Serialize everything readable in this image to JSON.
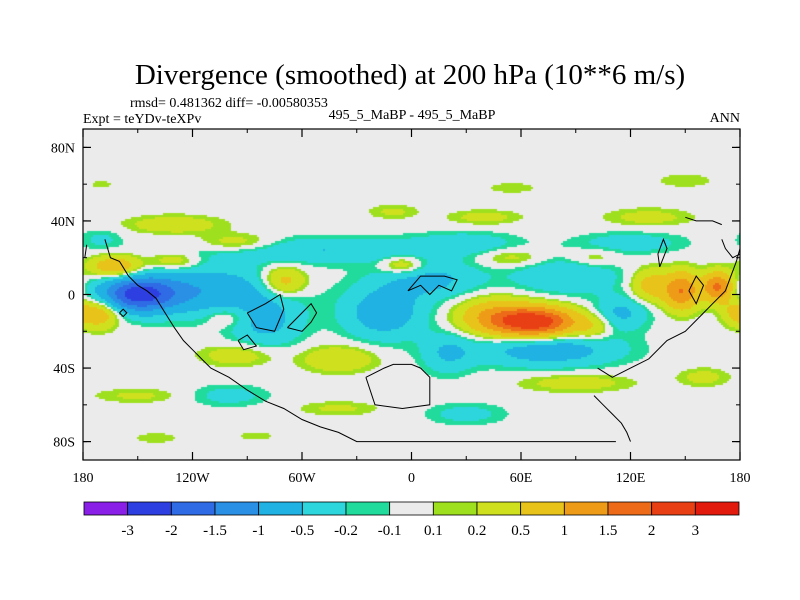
{
  "chart_data": {
    "type": "heatmap",
    "title": "Divergence (smoothed) at 200 hPa (10**6 m/s)",
    "stats_line": "rmsd= 0.481362 diff= -0.00580353",
    "left_label": "Expt = teYDv-teXPv",
    "center_label": "495_5_MaBP - 495_5_MaBP",
    "right_label": "ANN",
    "xlim": [
      -180,
      180
    ],
    "ylim": [
      -90,
      90
    ],
    "x_ticks": [
      {
        "value": -180,
        "label": "180"
      },
      {
        "value": -120,
        "label": "120W"
      },
      {
        "value": -60,
        "label": "60W"
      },
      {
        "value": 0,
        "label": "0"
      },
      {
        "value": 60,
        "label": "60E"
      },
      {
        "value": 120,
        "label": "120E"
      },
      {
        "value": 180,
        "label": "180"
      }
    ],
    "y_ticks": [
      {
        "value": 80,
        "label": "80N"
      },
      {
        "value": 40,
        "label": "40N"
      },
      {
        "value": 0,
        "label": "0"
      },
      {
        "value": -40,
        "label": "40S"
      },
      {
        "value": -80,
        "label": "80S"
      }
    ],
    "levels": [
      "-3",
      "-2",
      "-1.5",
      "-1",
      "-0.5",
      "-0.2",
      "-0.1",
      "0.1",
      "0.2",
      "0.5",
      "1",
      "1.5",
      "2",
      "3"
    ],
    "colors": [
      "#8a20e8",
      "#2d3fe0",
      "#2f6be4",
      "#2a90e6",
      "#1fb2e2",
      "#2dd6dc",
      "#21db9c",
      "#ebebeb",
      "#9fe01e",
      "#cfe11e",
      "#e8c41a",
      "#ee9c18",
      "#ec6a18",
      "#e83f14",
      "#e21a0e"
    ],
    "blobs": [
      {
        "lon": -150,
        "lat": 0,
        "rlon": 20,
        "rlat": 9,
        "v": -2.0
      },
      {
        "lon": -115,
        "lat": 2,
        "rlon": 40,
        "rlat": 13,
        "v": -0.9
      },
      {
        "lon": -80,
        "lat": -15,
        "rlon": 20,
        "rlat": 14,
        "v": -0.6
      },
      {
        "lon": -15,
        "lat": -10,
        "rlon": 22,
        "rlat": 14,
        "v": -0.8
      },
      {
        "lon": 10,
        "lat": 8,
        "rlon": 28,
        "rlat": 10,
        "v": -0.6
      },
      {
        "lon": 20,
        "lat": -32,
        "rlon": 14,
        "rlat": 11,
        "v": -0.5
      },
      {
        "lon": 85,
        "lat": 10,
        "rlon": 30,
        "rlat": 10,
        "v": -0.5
      },
      {
        "lon": 75,
        "lat": -30,
        "rlon": 38,
        "rlat": 9,
        "v": -0.8
      },
      {
        "lon": 115,
        "lat": -10,
        "rlon": 15,
        "rlat": 9,
        "v": -0.6
      },
      {
        "lon": -50,
        "lat": 24,
        "rlon": 65,
        "rlat": 7,
        "v": -0.5
      },
      {
        "lon": 30,
        "lat": 28,
        "rlon": 28,
        "rlat": 6,
        "v": -0.35
      },
      {
        "lon": 120,
        "lat": 28,
        "rlon": 30,
        "rlat": 6,
        "v": -0.35
      },
      {
        "lon": -100,
        "lat": -55,
        "rlon": 22,
        "rlat": 6,
        "v": -0.3
      },
      {
        "lon": 30,
        "lat": -65,
        "rlon": 22,
        "rlat": 6,
        "v": -0.3
      },
      {
        "lon": -170,
        "lat": 30,
        "rlon": 12,
        "rlat": 6,
        "v": -0.25
      },
      {
        "lon": 68,
        "lat": -15,
        "rlon": 22,
        "rlat": 8,
        "v": 2.4
      },
      {
        "lon": 45,
        "lat": -12,
        "rlon": 20,
        "rlat": 10,
        "v": 0.9
      },
      {
        "lon": 100,
        "lat": -18,
        "rlon": 10,
        "rlat": 7,
        "v": 0.4
      },
      {
        "lon": 148,
        "lat": 2,
        "rlon": 10,
        "rlat": 10,
        "v": 1.5
      },
      {
        "lon": 168,
        "lat": 4,
        "rlon": 8,
        "rlat": 8,
        "v": 1.6
      },
      {
        "lon": 130,
        "lat": 5,
        "rlon": 10,
        "rlat": 9,
        "v": 0.7
      },
      {
        "lon": -170,
        "lat": -10,
        "rlon": 10,
        "rlat": 8,
        "v": 0.9
      },
      {
        "lon": 178,
        "lat": -10,
        "rlon": 8,
        "rlat": 7,
        "v": 0.6
      },
      {
        "lon": -162,
        "lat": 15,
        "rlon": 14,
        "rlat": 6,
        "v": 1.0
      },
      {
        "lon": -70,
        "lat": 7,
        "rlon": 12,
        "rlat": 8,
        "v": 0.8
      },
      {
        "lon": -100,
        "lat": -12,
        "rlon": 12,
        "rlat": 6,
        "v": 0.4
      },
      {
        "lon": -130,
        "lat": 18,
        "rlon": 14,
        "rlat": 5,
        "v": 0.5
      },
      {
        "lon": -95,
        "lat": 28,
        "rlon": 22,
        "rlat": 5,
        "v": 0.45
      },
      {
        "lon": -5,
        "lat": 16,
        "rlon": 12,
        "rlat": 5,
        "v": 0.6
      },
      {
        "lon": -40,
        "lat": -35,
        "rlon": 20,
        "rlat": 7,
        "v": 0.5
      },
      {
        "lon": -95,
        "lat": -33,
        "rlon": 20,
        "rlat": 6,
        "v": 0.4
      },
      {
        "lon": 55,
        "lat": 20,
        "rlon": 18,
        "rlat": 5,
        "v": 0.35
      },
      {
        "lon": 100,
        "lat": 20,
        "rlon": 14,
        "rlat": 5,
        "v": 0.3
      },
      {
        "lon": -130,
        "lat": 38,
        "rlon": 26,
        "rlat": 5,
        "v": 0.4
      },
      {
        "lon": 40,
        "lat": 42,
        "rlon": 20,
        "rlat": 4,
        "v": 0.3
      },
      {
        "lon": 130,
        "lat": 42,
        "rlon": 24,
        "rlat": 5,
        "v": 0.3
      },
      {
        "lon": -10,
        "lat": 45,
        "rlon": 14,
        "rlat": 4,
        "v": 0.25
      },
      {
        "lon": -40,
        "lat": -62,
        "rlon": 22,
        "rlat": 4,
        "v": 0.25
      },
      {
        "lon": 90,
        "lat": -48,
        "rlon": 30,
        "rlat": 5,
        "v": 0.35
      },
      {
        "lon": -150,
        "lat": -55,
        "rlon": 24,
        "rlat": 4,
        "v": 0.25
      },
      {
        "lon": 160,
        "lat": -45,
        "rlon": 14,
        "rlat": 5,
        "v": 0.3
      },
      {
        "lon": -140,
        "lat": -78,
        "rlon": 12,
        "rlat": 3,
        "v": 0.2
      },
      {
        "lon": -85,
        "lat": -77,
        "rlon": 10,
        "rlat": 2.5,
        "v": 0.2
      },
      {
        "lon": -170,
        "lat": 60,
        "rlon": 6,
        "rlat": 2,
        "v": 0.2
      },
      {
        "lon": 150,
        "lat": 62,
        "rlon": 16,
        "rlat": 4,
        "v": 0.2
      },
      {
        "lon": 55,
        "lat": 58,
        "rlon": 14,
        "rlat": 3,
        "v": 0.2
      }
    ],
    "coastlines": [
      [
        [
          -168,
          30
        ],
        [
          -165,
          20
        ],
        [
          -160,
          18
        ],
        [
          -155,
          10
        ],
        [
          -150,
          5
        ],
        [
          -145,
          2
        ],
        [
          -140,
          -2
        ],
        [
          -135,
          -10
        ],
        [
          -130,
          -18
        ],
        [
          -125,
          -25
        ],
        [
          -120,
          -30
        ],
        [
          -115,
          -35
        ],
        [
          -110,
          -40
        ],
        [
          -100,
          -45
        ],
        [
          -90,
          -52
        ],
        [
          -80,
          -58
        ],
        [
          -70,
          -62
        ],
        [
          -60,
          -68
        ],
        [
          -50,
          -72
        ],
        [
          -40,
          -75
        ],
        [
          -30,
          -80
        ],
        [
          0,
          -80
        ],
        [
          40,
          -80
        ],
        [
          80,
          -80
        ],
        [
          112,
          -80
        ]
      ],
      [
        [
          -160,
          -10
        ],
        [
          -158,
          -12
        ],
        [
          -156,
          -10
        ],
        [
          -158,
          -8
        ],
        [
          -160,
          -10
        ]
      ],
      [
        [
          -95,
          -25
        ],
        [
          -90,
          -22
        ],
        [
          -85,
          -28
        ],
        [
          -92,
          -30
        ],
        [
          -95,
          -25
        ]
      ],
      [
        [
          -68,
          -18
        ],
        [
          -60,
          -10
        ],
        [
          -55,
          -5
        ],
        [
          -52,
          -10
        ],
        [
          -55,
          -15
        ],
        [
          -60,
          -20
        ],
        [
          -68,
          -18
        ]
      ],
      [
        [
          -90,
          -10
        ],
        [
          -80,
          -5
        ],
        [
          -72,
          0
        ],
        [
          -70,
          -8
        ],
        [
          -75,
          -20
        ],
        [
          -85,
          -18
        ],
        [
          -90,
          -10
        ]
      ],
      [
        [
          -25,
          -45
        ],
        [
          -15,
          -40
        ],
        [
          -10,
          -38
        ],
        [
          0,
          -38
        ],
        [
          5,
          -40
        ],
        [
          10,
          -45
        ],
        [
          10,
          -60
        ],
        [
          -5,
          -62
        ],
        [
          -20,
          -60
        ],
        [
          -25,
          -45
        ]
      ],
      [
        [
          -2,
          2
        ],
        [
          5,
          5
        ],
        [
          10,
          0
        ],
        [
          15,
          5
        ],
        [
          22,
          2
        ],
        [
          25,
          8
        ],
        [
          18,
          10
        ],
        [
          5,
          10
        ],
        [
          -2,
          2
        ]
      ],
      [
        [
          102,
          -40
        ],
        [
          110,
          -45
        ],
        [
          120,
          -40
        ],
        [
          130,
          -35
        ],
        [
          140,
          -25
        ],
        [
          150,
          -20
        ],
        [
          158,
          -12
        ],
        [
          165,
          -5
        ],
        [
          172,
          2
        ],
        [
          175,
          10
        ],
        [
          178,
          18
        ],
        [
          180,
          25
        ]
      ],
      [
        [
          100,
          -55
        ],
        [
          105,
          -60
        ],
        [
          110,
          -65
        ],
        [
          115,
          -70
        ],
        [
          118,
          -75
        ],
        [
          120,
          -80
        ]
      ],
      [
        [
          136,
          15
        ],
        [
          138,
          20
        ],
        [
          140,
          25
        ],
        [
          138,
          30
        ],
        [
          135,
          22
        ],
        [
          136,
          15
        ]
      ],
      [
        [
          152,
          2
        ],
        [
          156,
          -5
        ],
        [
          160,
          5
        ],
        [
          156,
          10
        ],
        [
          152,
          2
        ]
      ],
      [
        [
          170,
          30
        ],
        [
          172,
          25
        ],
        [
          176,
          20
        ],
        [
          180,
          22
        ]
      ],
      [
        [
          -179,
          20
        ],
        [
          -178,
          27
        ]
      ],
      [
        [
          150,
          42
        ],
        [
          156,
          40
        ],
        [
          165,
          40
        ],
        [
          170,
          38
        ]
      ]
    ]
  }
}
